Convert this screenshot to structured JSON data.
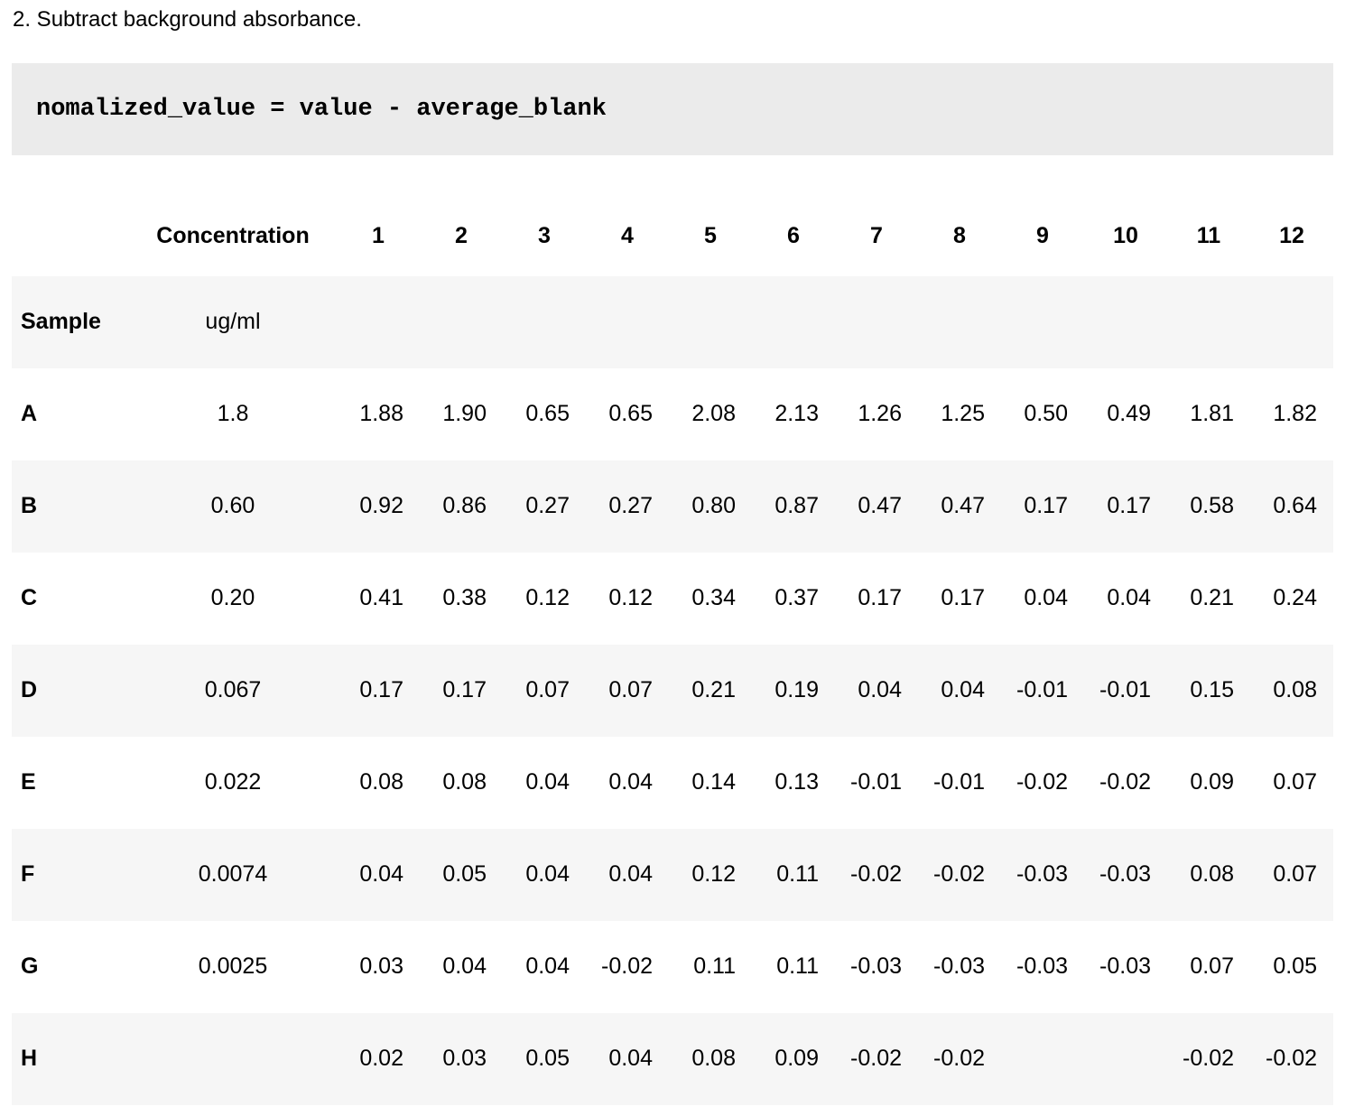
{
  "page": {
    "heading": "2. Subtract background absorbance.",
    "code": "nomalized_value = value - average_blank"
  },
  "table": {
    "header": {
      "concentration": "Concentration",
      "columns": [
        "1",
        "2",
        "3",
        "4",
        "5",
        "6",
        "7",
        "8",
        "9",
        "10",
        "11",
        "12"
      ]
    },
    "subheader": {
      "label": "Sample",
      "unit": "ug/ml"
    },
    "rows": [
      {
        "label": "A",
        "concentration": "1.8",
        "values": [
          "1.88",
          "1.90",
          "0.65",
          "0.65",
          "2.08",
          "2.13",
          "1.26",
          "1.25",
          "0.50",
          "0.49",
          "1.81",
          "1.82"
        ]
      },
      {
        "label": "B",
        "concentration": "0.60",
        "values": [
          "0.92",
          "0.86",
          "0.27",
          "0.27",
          "0.80",
          "0.87",
          "0.47",
          "0.47",
          "0.17",
          "0.17",
          "0.58",
          "0.64"
        ]
      },
      {
        "label": "C",
        "concentration": "0.20",
        "values": [
          "0.41",
          "0.38",
          "0.12",
          "0.12",
          "0.34",
          "0.37",
          "0.17",
          "0.17",
          "0.04",
          "0.04",
          "0.21",
          "0.24"
        ]
      },
      {
        "label": "D",
        "concentration": "0.067",
        "values": [
          "0.17",
          "0.17",
          "0.07",
          "0.07",
          "0.21",
          "0.19",
          "0.04",
          "0.04",
          "-0.01",
          "-0.01",
          "0.15",
          "0.08"
        ]
      },
      {
        "label": "E",
        "concentration": "0.022",
        "values": [
          "0.08",
          "0.08",
          "0.04",
          "0.04",
          "0.14",
          "0.13",
          "-0.01",
          "-0.01",
          "-0.02",
          "-0.02",
          "0.09",
          "0.07"
        ]
      },
      {
        "label": "F",
        "concentration": "0.0074",
        "values": [
          "0.04",
          "0.05",
          "0.04",
          "0.04",
          "0.12",
          "0.11",
          "-0.02",
          "-0.02",
          "-0.03",
          "-0.03",
          "0.08",
          "0.07"
        ]
      },
      {
        "label": "G",
        "concentration": "0.0025",
        "values": [
          "0.03",
          "0.04",
          "0.04",
          "-0.02",
          "0.11",
          "0.11",
          "-0.03",
          "-0.03",
          "-0.03",
          "-0.03",
          "0.07",
          "0.05"
        ]
      },
      {
        "label": "H",
        "concentration": "",
        "values": [
          "0.02",
          "0.03",
          "0.05",
          "0.04",
          "0.08",
          "0.09",
          "-0.02",
          "-0.02",
          "",
          "",
          "-0.02",
          "-0.02"
        ]
      }
    ]
  },
  "colors": {
    "code_background": "#ebebeb",
    "row_stripe_background": "#f6f6f6",
    "text": "#000000",
    "page_background": "#ffffff"
  }
}
